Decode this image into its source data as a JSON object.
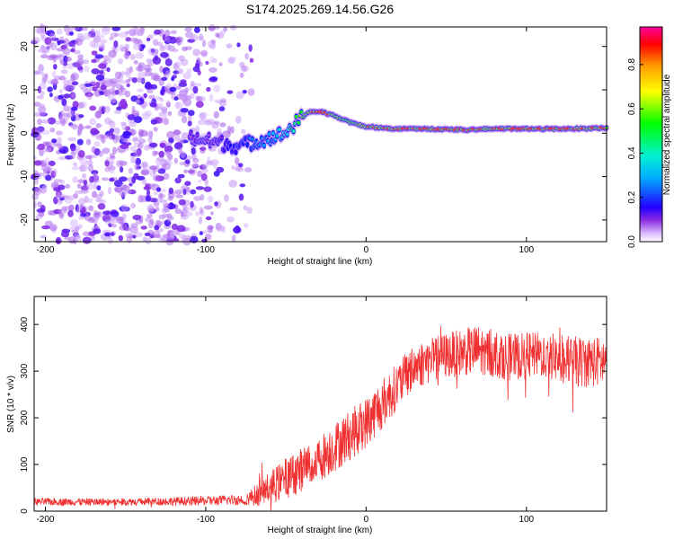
{
  "title": "S174.2025.269.14.56.G26",
  "chart_data": [
    {
      "type": "heatmap",
      "xlabel": "Height of straight line (km)",
      "ylabel": "Frequency (Hz)",
      "xlim": [
        -207,
        150
      ],
      "ylim": [
        -25,
        24.5
      ],
      "xticks": [
        -200,
        -100,
        0,
        100
      ],
      "yticks": [
        -20,
        -10,
        0,
        10,
        20
      ],
      "colorbar": {
        "label": "Normalized spectral amplitude",
        "range": [
          0,
          0.97
        ],
        "ticks": [
          0,
          0.2,
          0.4,
          0.6,
          0.8
        ],
        "tick_labels": [
          "0.0",
          "0.2",
          "0.4",
          "0.6",
          "0.8"
        ]
      },
      "ridge": {
        "description_points_x_km": [
          -110,
          -95,
          -80,
          -70,
          -60,
          -50,
          -42,
          -35,
          -28,
          -20,
          -10,
          0,
          20,
          40,
          60,
          80,
          100,
          120,
          150
        ],
        "frequency_hz": [
          -1,
          -2,
          -3,
          -2,
          -1,
          0,
          3,
          5,
          5,
          4,
          2.5,
          1.5,
          1,
          1,
          0.8,
          1,
          1,
          1,
          1.2
        ],
        "amplitude": [
          0.1,
          0.1,
          0.2,
          0.25,
          0.3,
          0.4,
          0.6,
          0.85,
          0.85,
          0.7,
          0.6,
          0.75,
          0.8,
          0.85,
          0.85,
          0.8,
          0.85,
          0.85,
          0.8
        ]
      }
    },
    {
      "type": "line",
      "xlabel": "Height of straight line (km)",
      "ylabel": "SNR (10 * v/v)",
      "xlim": [
        -207,
        150
      ],
      "ylim": [
        0,
        460
      ],
      "xticks": [
        -200,
        -100,
        0,
        100
      ],
      "yticks": [
        0,
        100,
        200,
        300,
        400
      ],
      "color": "#f03030",
      "envelope": {
        "x": [
          -207,
          -150,
          -100,
          -75,
          -65,
          -50,
          -30,
          -15,
          0,
          10,
          20,
          30,
          45,
          60,
          70,
          90,
          110,
          130,
          150
        ],
        "mean": [
          20,
          20,
          22,
          25,
          40,
          70,
          110,
          150,
          190,
          230,
          270,
          310,
          330,
          340,
          345,
          330,
          335,
          320,
          320
        ],
        "spread": [
          8,
          8,
          10,
          12,
          30,
          45,
          50,
          55,
          55,
          55,
          50,
          50,
          50,
          50,
          55,
          50,
          50,
          55,
          55
        ]
      }
    }
  ]
}
